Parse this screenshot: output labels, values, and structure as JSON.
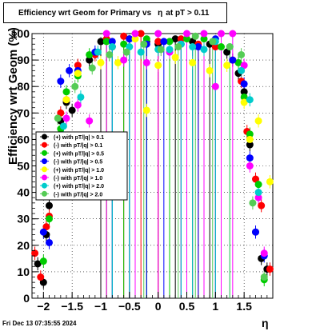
{
  "title": {
    "prefix": "Efficiency wrt Geom for Primary vs",
    "eta_symbol": "η",
    "suffix": "at pT > 0.11"
  },
  "timestamp": "Fri Dec 13 07:35:55 2024",
  "chart_data": {
    "type": "scatter",
    "xlabel": "η",
    "ylabel": "Efficiency wrt Geom (%)",
    "xlim": [
      -2.2,
      2.0
    ],
    "ylim": [
      0,
      100
    ],
    "xticks": [
      {
        "v": -2,
        "label": "−2"
      },
      {
        "v": -1.5,
        "label": "−1.5"
      },
      {
        "v": -1,
        "label": "−1"
      },
      {
        "v": -0.5,
        "label": "−0.5"
      },
      {
        "v": 0,
        "label": "0"
      },
      {
        "v": 0.5,
        "label": "0.5"
      },
      {
        "v": 1,
        "label": "1"
      },
      {
        "v": 1.5,
        "label": "1.5"
      }
    ],
    "yticks": [
      0,
      10,
      20,
      30,
      40,
      50,
      60,
      70,
      80,
      90,
      100
    ],
    "grid": true,
    "legend_placement": "left-middle",
    "series": [
      {
        "name": "(+) with pT/|q| > 0.1",
        "color": "#000000",
        "x": [
          -2.1,
          -2.0,
          -1.95,
          -1.9,
          -1.7,
          -1.6,
          -1.5,
          -1.2,
          -1.0,
          -0.8,
          -0.5,
          -0.2,
          0.0,
          0.3,
          0.6,
          0.9,
          1.2,
          1.4,
          1.5,
          1.6,
          1.7,
          1.8,
          1.9
        ],
        "y": [
          13,
          6,
          24,
          35,
          67,
          74,
          71,
          90,
          97,
          95,
          98,
          97,
          96,
          98,
          97,
          96,
          93,
          85,
          78,
          58,
          25,
          15,
          11
        ]
      },
      {
        "name": "(-) with pT/|q| > 0.1",
        "color": "#ff0000",
        "x": [
          -2.15,
          -2.05,
          -1.95,
          -1.9,
          -1.7,
          -1.6,
          -1.4,
          -1.1,
          -0.9,
          -0.6,
          -0.3,
          0.0,
          0.4,
          0.7,
          1.0,
          1.3,
          1.45,
          1.55,
          1.7,
          1.8,
          1.95
        ],
        "y": [
          17,
          8,
          27,
          31,
          70,
          75,
          88,
          92,
          98,
          99,
          100,
          97,
          98,
          96,
          95,
          90,
          82,
          63,
          45,
          35,
          11
        ]
      },
      {
        "name": "(+) with pT/|q| > 0.5",
        "color": "#00cc00",
        "x": [
          -2.0,
          -1.9,
          -1.7,
          -1.6,
          -1.4,
          -1.2,
          -0.9,
          -0.6,
          -0.2,
          0.2,
          0.5,
          0.8,
          1.1,
          1.4,
          1.5,
          1.6,
          1.75,
          1.85
        ],
        "y": [
          14,
          30,
          64,
          78,
          84,
          92,
          97,
          96,
          98,
          97,
          98,
          98,
          95,
          89,
          76,
          62,
          43,
          7
        ]
      },
      {
        "name": "(-) with pT/|q| > 0.5",
        "color": "#0000ff",
        "x": [
          -2.0,
          -1.9,
          -1.7,
          -1.55,
          -1.4,
          -1.1,
          -0.8,
          -0.5,
          -0.2,
          0.1,
          0.4,
          0.7,
          1.0,
          1.3,
          1.5,
          1.6,
          1.7,
          1.85
        ],
        "y": [
          25,
          21,
          82,
          86,
          86,
          93,
          97,
          98,
          96,
          97,
          96,
          95,
          98,
          90,
          81,
          53,
          25,
          16
        ]
      },
      {
        "name": "(+) with pT/|q| > 1.0",
        "color": "#ffff00",
        "x": [
          -1.9,
          -1.6,
          -1.4,
          -1.0,
          -0.7,
          -0.4,
          -0.2,
          0.0,
          0.3,
          0.6,
          0.9,
          1.2,
          1.5,
          1.6,
          1.75,
          1.95
        ],
        "y": [
          55,
          75,
          85,
          89,
          89,
          98,
          71,
          88,
          91,
          89,
          86,
          88,
          74,
          60,
          67,
          44
        ]
      },
      {
        "name": "(-) with pT/|q| > 1.0",
        "color": "#ff00ff",
        "x": [
          -1.6,
          -1.4,
          -1.2,
          -0.9,
          -0.6,
          -0.4,
          -0.2,
          0.0,
          0.2,
          0.5,
          0.8,
          1.0,
          1.1,
          1.3,
          1.5,
          1.6,
          1.75,
          1.85
        ],
        "y": [
          68,
          73,
          67,
          100,
          90,
          100,
          89,
          100,
          93,
          100,
          100,
          80,
          100,
          100,
          88,
          50,
          38,
          17
        ]
      },
      {
        "name": "(+) with pT/|q| > 2.0",
        "color": "#00cccc",
        "x": [
          -1.65,
          -1.35,
          -1.05,
          -0.8,
          -0.5,
          -0.3,
          0.0,
          0.2,
          0.4,
          0.6,
          0.8,
          1.0,
          1.25,
          1.45,
          1.6,
          1.75
        ],
        "y": [
          65,
          76,
          93,
          95,
          95,
          93,
          94,
          94,
          96,
          95,
          94,
          97,
          95,
          86,
          75,
          40
        ]
      },
      {
        "name": "(-) with pT/|q| > 2.0",
        "color": "#55cc55",
        "x": [
          -1.75,
          -1.45,
          -1.15,
          -0.85,
          -0.55,
          -0.25,
          0.05,
          0.35,
          0.65,
          0.95,
          1.25,
          1.45,
          1.65,
          1.85
        ],
        "y": [
          68,
          80,
          87,
          92,
          93,
          96,
          94,
          95,
          99,
          97,
          95,
          92,
          36,
          8
        ]
      }
    ]
  }
}
